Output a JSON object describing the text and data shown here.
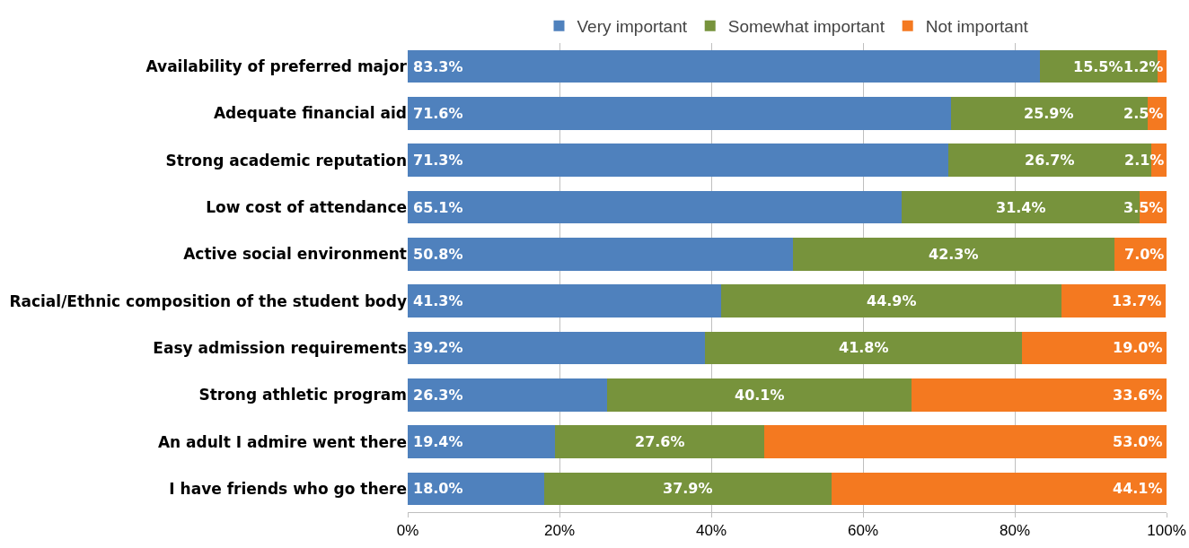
{
  "chart_data": {
    "type": "bar",
    "orientation": "horizontal",
    "stacked": true,
    "grid": "x",
    "legend": "top",
    "categories": [
      "Availability of preferred major",
      "Adequate financial aid",
      "Strong academic reputation",
      "Low cost of attendance",
      "Active social environment",
      "Racial/Ethnic composition of the student body",
      "Easy admission requirements",
      "Strong athletic program",
      "An adult I admire went there",
      "I have friends who go there"
    ],
    "series": [
      {
        "name": "Very important",
        "color": "#4f81bd",
        "values": [
          83.3,
          71.6,
          71.3,
          65.1,
          50.8,
          41.3,
          39.2,
          26.3,
          19.4,
          18.0
        ],
        "value_labels": [
          "83.3%",
          "71.6%",
          "71.3%",
          "65.1%",
          "50.8%",
          "41.3%",
          "39.2%",
          "26.3%",
          "19.4%",
          "18.0%"
        ]
      },
      {
        "name": "Somewhat important",
        "color": "#77933c",
        "values": [
          15.5,
          25.9,
          26.7,
          31.4,
          42.3,
          44.9,
          41.8,
          40.1,
          27.6,
          37.9
        ],
        "value_labels": [
          "15.5%",
          "25.9%",
          "26.7%",
          "31.4%",
          "42.3%",
          "44.9%",
          "41.8%",
          "40.1%",
          "27.6%",
          "37.9%"
        ]
      },
      {
        "name": "Not important",
        "color": "#f47920",
        "values": [
          1.2,
          2.5,
          2.1,
          3.5,
          7.0,
          13.7,
          19.0,
          33.6,
          53.0,
          44.1
        ],
        "value_labels": [
          "1.2%",
          "2.5%",
          "2.1%",
          "3.5%",
          "7.0%",
          "13.7%",
          "19.0%",
          "33.6%",
          "53.0%",
          "44.1%"
        ]
      }
    ],
    "xlim": [
      0,
      100
    ],
    "xticks": [
      {
        "value": 0,
        "label": "0%"
      },
      {
        "value": 20,
        "label": "20%"
      },
      {
        "value": 40,
        "label": "40%"
      },
      {
        "value": 60,
        "label": "60%"
      },
      {
        "value": 80,
        "label": "80%"
      },
      {
        "value": 100,
        "label": "100%"
      }
    ]
  }
}
